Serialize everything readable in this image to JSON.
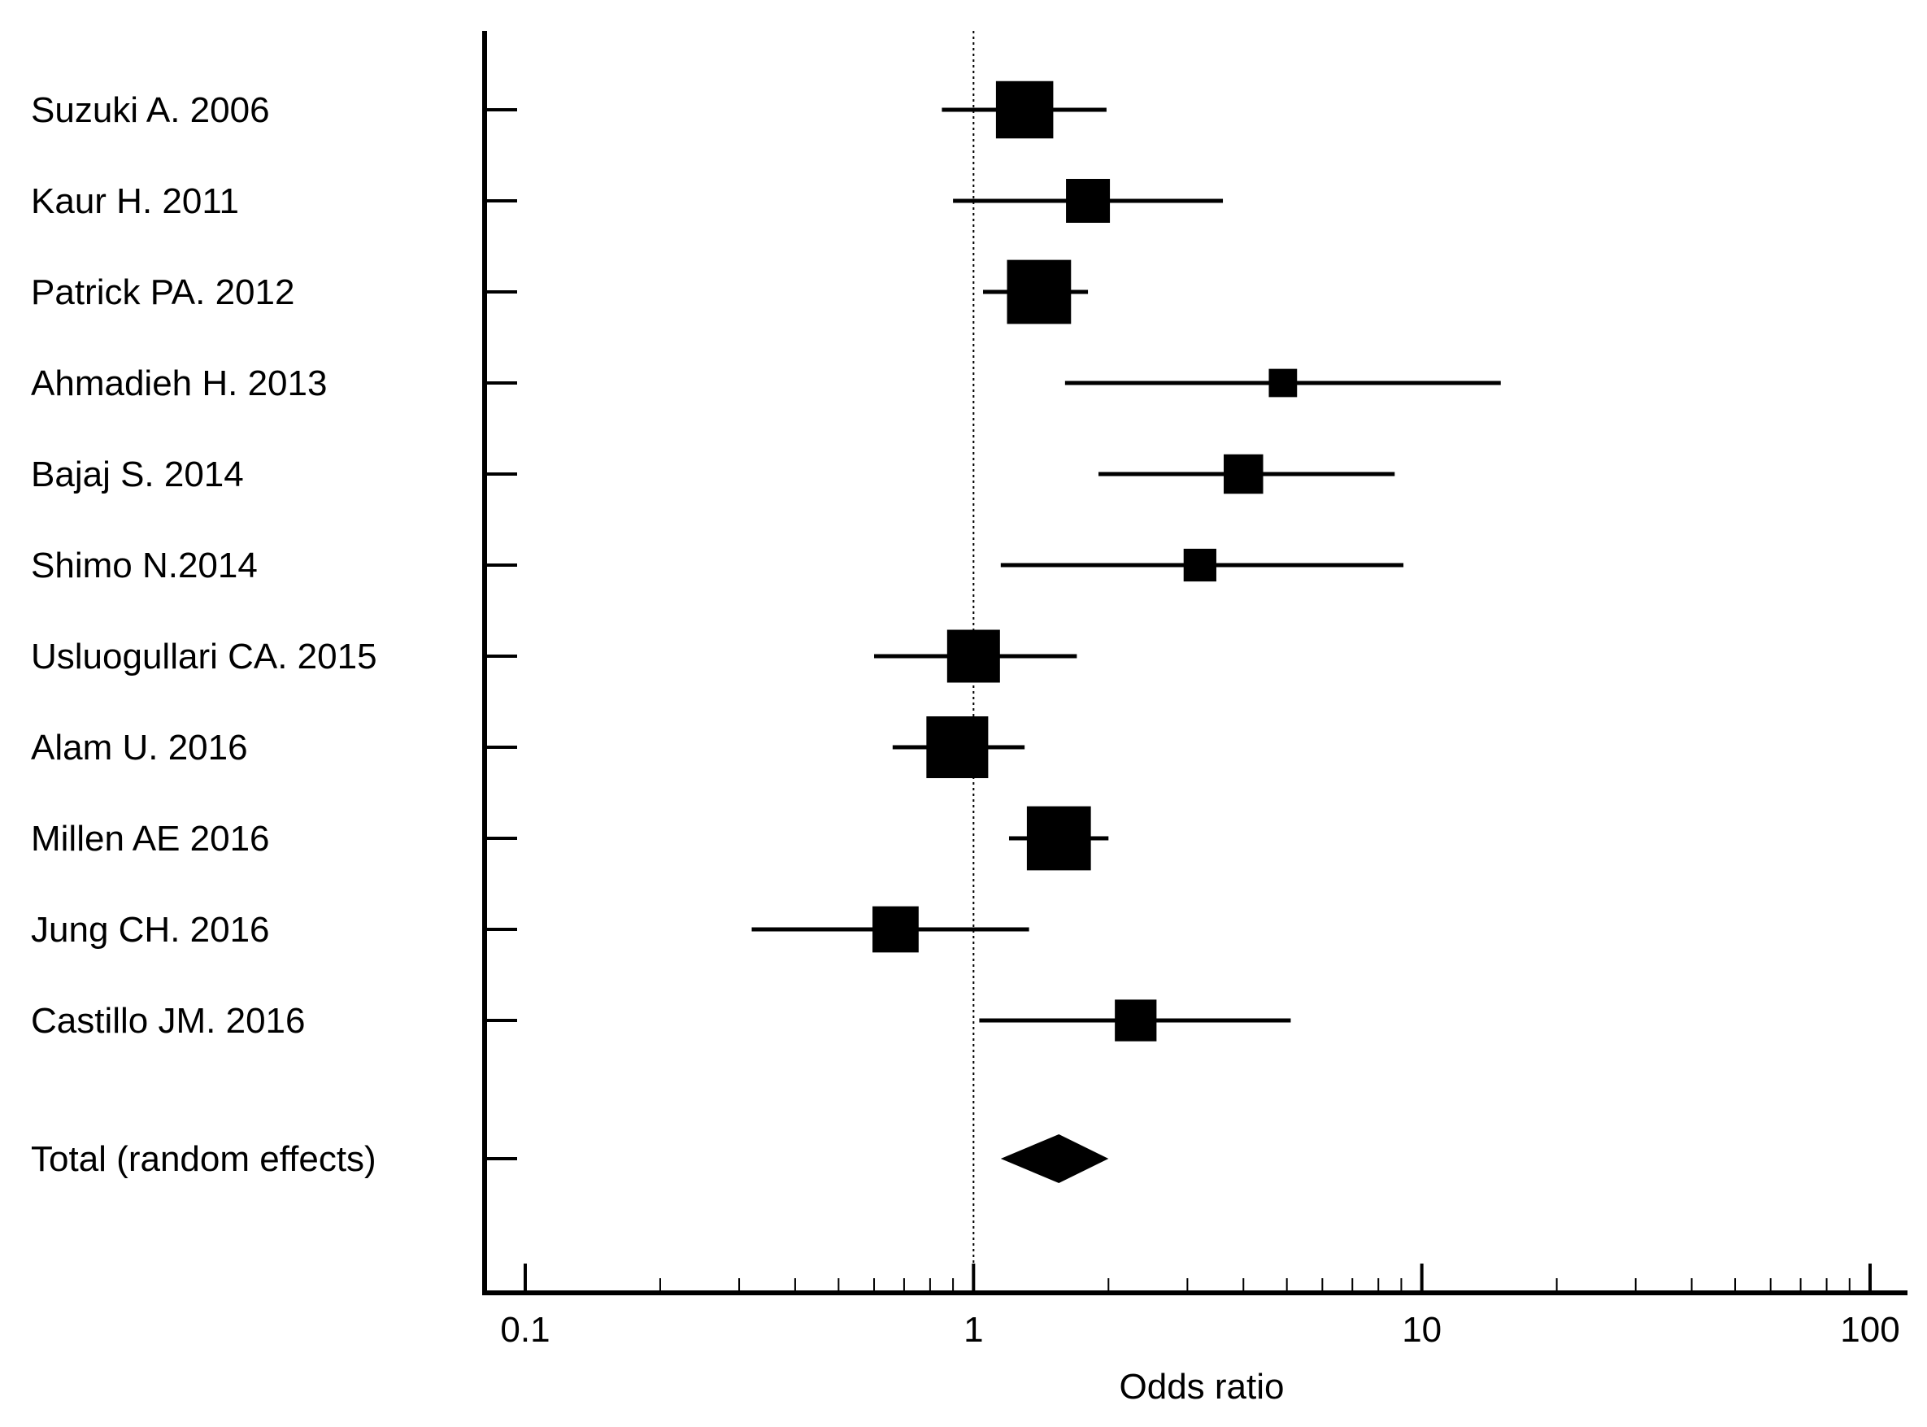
{
  "chart_data": {
    "type": "forest",
    "xlabel": "Odds ratio",
    "xscale": "log",
    "xlim": [
      0.1,
      100
    ],
    "reference_line": 1,
    "tick_labels": [
      "0.1",
      "1",
      "10",
      "100"
    ],
    "tick_values": [
      0.1,
      1,
      10,
      100
    ],
    "studies": [
      {
        "label": "Suzuki A. 2006",
        "or": 1.3,
        "ci": [
          0.85,
          1.98
        ],
        "weight": 11.0
      },
      {
        "label": "Kaur H. 2011",
        "or": 1.8,
        "ci": [
          0.9,
          3.6
        ],
        "weight": 8.0
      },
      {
        "label": "Patrick PA. 2012",
        "or": 1.4,
        "ci": [
          1.05,
          1.8
        ],
        "weight": 12.5
      },
      {
        "label": "Ahmadieh H. 2013",
        "or": 4.9,
        "ci": [
          1.6,
          15.0
        ],
        "weight": 4.5
      },
      {
        "label": "Bajaj S. 2014",
        "or": 4.0,
        "ci": [
          1.9,
          8.7
        ],
        "weight": 7.0
      },
      {
        "label": "Shimo N.2014",
        "or": 3.2,
        "ci": [
          1.15,
          9.1
        ],
        "weight": 5.5
      },
      {
        "label": "Usluogullari CA. 2015",
        "or": 1.0,
        "ci": [
          0.6,
          1.7
        ],
        "weight": 10.0
      },
      {
        "label": "Alam U. 2016",
        "or": 0.92,
        "ci": [
          0.66,
          1.3
        ],
        "weight": 12.0
      },
      {
        "label": "Millen AE 2016",
        "or": 1.55,
        "ci": [
          1.2,
          2.0
        ],
        "weight": 12.5
      },
      {
        "label": "Jung CH. 2016",
        "or": 0.67,
        "ci": [
          0.32,
          1.33
        ],
        "weight": 8.5
      },
      {
        "label": "Castillo JM. 2016",
        "or": 2.3,
        "ci": [
          1.03,
          5.1
        ],
        "weight": 7.5
      }
    ],
    "total": {
      "label": "Total (random effects)",
      "or": 1.55,
      "ci": [
        1.15,
        2.0
      ]
    }
  }
}
